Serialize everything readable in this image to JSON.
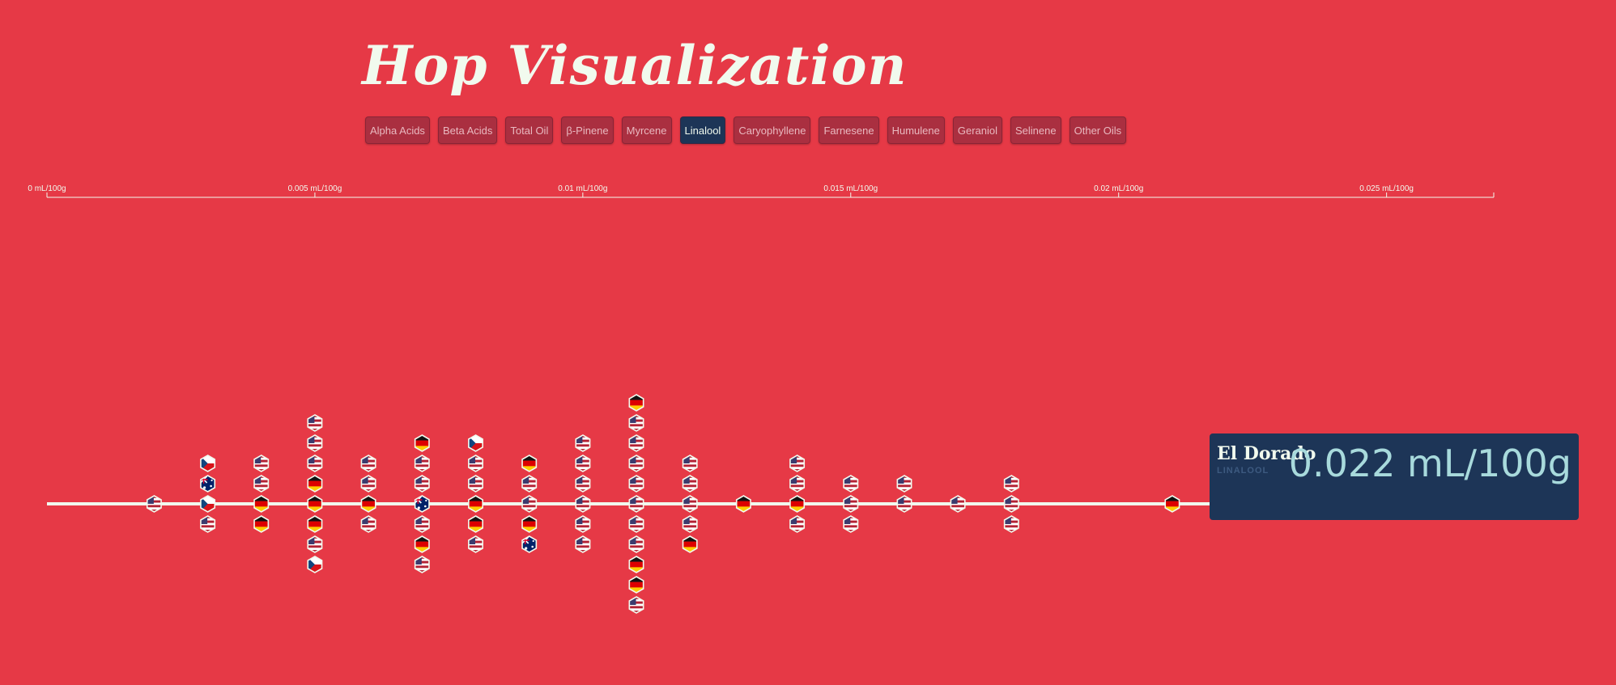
{
  "page": {
    "title": "Hop Visualization"
  },
  "tabs": [
    {
      "label": "Alpha Acids",
      "active": false
    },
    {
      "label": "Beta Acids",
      "active": false
    },
    {
      "label": "Total Oil",
      "active": false
    },
    {
      "label": "β-Pinene",
      "active": false
    },
    {
      "label": "Myrcene",
      "active": false
    },
    {
      "label": "Linalool",
      "active": true
    },
    {
      "label": "Caryophyllene",
      "active": false
    },
    {
      "label": "Farnesene",
      "active": false
    },
    {
      "label": "Humulene",
      "active": false
    },
    {
      "label": "Geraniol",
      "active": false
    },
    {
      "label": "Selinene",
      "active": false
    },
    {
      "label": "Other Oils",
      "active": false
    }
  ],
  "tooltip": {
    "name": "El Dorado",
    "metric": "LINALOOL",
    "value": "0.022 mL/100g"
  },
  "colors": {
    "background": "#e63946",
    "text": "#f1faee",
    "tooltip_bg": "#1d3557",
    "tooltip_value": "#a8dadc",
    "tooltip_metric": "#3d5a80",
    "tab_active": "#1d3557"
  },
  "chart_data": {
    "type": "scatter",
    "subtype": "beeswarm",
    "xlim": [
      0,
      0.027
    ],
    "x_ticks": [
      0,
      0.005,
      0.01,
      0.015,
      0.02,
      0.025
    ],
    "x_tick_labels": [
      "0 mL/100g",
      "0.005 mL/100g",
      "0.01 mL/100g",
      "0.015 mL/100g",
      "0.02 mL/100g",
      "0.025 mL/100g"
    ],
    "highlighted_index": 56,
    "points": [
      {
        "x": 0.002,
        "country": "USA"
      },
      {
        "x": 0.003,
        "country": "Czech"
      },
      {
        "x": 0.003,
        "country": "Australia"
      },
      {
        "x": 0.003,
        "country": "USA"
      },
      {
        "x": 0.003,
        "country": "Czech"
      },
      {
        "x": 0.004,
        "country": "Germany"
      },
      {
        "x": 0.004,
        "country": "USA"
      },
      {
        "x": 0.004,
        "country": "Germany"
      },
      {
        "x": 0.004,
        "country": "USA"
      },
      {
        "x": 0.005,
        "country": "Germany"
      },
      {
        "x": 0.005,
        "country": "Germany"
      },
      {
        "x": 0.005,
        "country": "Germany"
      },
      {
        "x": 0.005,
        "country": "USA"
      },
      {
        "x": 0.005,
        "country": "USA"
      },
      {
        "x": 0.005,
        "country": "USA"
      },
      {
        "x": 0.005,
        "country": "Czech"
      },
      {
        "x": 0.005,
        "country": "USA"
      },
      {
        "x": 0.006,
        "country": "Germany"
      },
      {
        "x": 0.006,
        "country": "USA"
      },
      {
        "x": 0.006,
        "country": "USA"
      },
      {
        "x": 0.006,
        "country": "USA"
      },
      {
        "x": 0.007,
        "country": "Australia"
      },
      {
        "x": 0.007,
        "country": "USA"
      },
      {
        "x": 0.007,
        "country": "USA"
      },
      {
        "x": 0.007,
        "country": "USA"
      },
      {
        "x": 0.007,
        "country": "Germany"
      },
      {
        "x": 0.007,
        "country": "Germany"
      },
      {
        "x": 0.007,
        "country": "USA"
      },
      {
        "x": 0.008,
        "country": "Germany"
      },
      {
        "x": 0.008,
        "country": "USA"
      },
      {
        "x": 0.008,
        "country": "Germany"
      },
      {
        "x": 0.008,
        "country": "USA"
      },
      {
        "x": 0.008,
        "country": "USA"
      },
      {
        "x": 0.008,
        "country": "Czech"
      },
      {
        "x": 0.009,
        "country": "USA"
      },
      {
        "x": 0.009,
        "country": "USA"
      },
      {
        "x": 0.009,
        "country": "Germany"
      },
      {
        "x": 0.009,
        "country": "Germany"
      },
      {
        "x": 0.009,
        "country": "Australia"
      },
      {
        "x": 0.01,
        "country": "USA"
      },
      {
        "x": 0.01,
        "country": "USA"
      },
      {
        "x": 0.01,
        "country": "USA"
      },
      {
        "x": 0.01,
        "country": "USA"
      },
      {
        "x": 0.01,
        "country": "USA"
      },
      {
        "x": 0.01,
        "country": "USA"
      },
      {
        "x": 0.011,
        "country": "USA"
      },
      {
        "x": 0.011,
        "country": "USA"
      },
      {
        "x": 0.011,
        "country": "USA"
      },
      {
        "x": 0.011,
        "country": "USA"
      },
      {
        "x": 0.011,
        "country": "USA"
      },
      {
        "x": 0.011,
        "country": "USA"
      },
      {
        "x": 0.011,
        "country": "Germany"
      },
      {
        "x": 0.011,
        "country": "USA"
      },
      {
        "x": 0.011,
        "country": "Germany"
      },
      {
        "x": 0.011,
        "country": "Germany"
      },
      {
        "x": 0.011,
        "country": "USA"
      },
      {
        "x": 0.022,
        "country": "USA"
      },
      {
        "x": 0.012,
        "country": "USA"
      },
      {
        "x": 0.012,
        "country": "USA"
      },
      {
        "x": 0.012,
        "country": "USA"
      },
      {
        "x": 0.012,
        "country": "USA"
      },
      {
        "x": 0.012,
        "country": "Germany"
      },
      {
        "x": 0.013,
        "country": "Germany"
      },
      {
        "x": 0.014,
        "country": "Germany"
      },
      {
        "x": 0.014,
        "country": "USA"
      },
      {
        "x": 0.014,
        "country": "USA"
      },
      {
        "x": 0.014,
        "country": "USA"
      },
      {
        "x": 0.015,
        "country": "USA"
      },
      {
        "x": 0.015,
        "country": "USA"
      },
      {
        "x": 0.015,
        "country": "USA"
      },
      {
        "x": 0.016,
        "country": "USA"
      },
      {
        "x": 0.016,
        "country": "USA"
      },
      {
        "x": 0.017,
        "country": "USA"
      },
      {
        "x": 0.018,
        "country": "USA"
      },
      {
        "x": 0.018,
        "country": "USA"
      },
      {
        "x": 0.018,
        "country": "USA"
      },
      {
        "x": 0.021,
        "country": "Germany"
      }
    ]
  }
}
